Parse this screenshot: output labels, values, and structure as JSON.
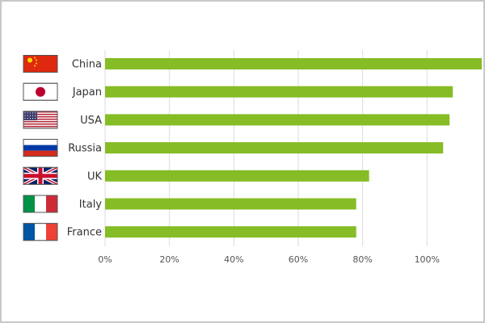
{
  "chart_data": {
    "type": "bar",
    "orientation": "horizontal",
    "categories": [
      "China",
      "Japan",
      "USA",
      "Russia",
      "UK",
      "Italy",
      "France"
    ],
    "category_icons": [
      "china-flag-icon",
      "japan-flag-icon",
      "usa-flag-icon",
      "russia-flag-icon",
      "uk-flag-icon",
      "italy-flag-icon",
      "france-flag-icon"
    ],
    "values": [
      117,
      108,
      107,
      105,
      82,
      78,
      78
    ],
    "xlim": [
      0,
      117
    ],
    "x_ticks": [
      "0%",
      "20%",
      "40%",
      "60%",
      "80%",
      "100%"
    ],
    "x_tick_values": [
      0,
      20,
      40,
      60,
      80,
      100
    ],
    "grid": "vertical",
    "legend": "none",
    "bar_color": "#86bc25"
  }
}
